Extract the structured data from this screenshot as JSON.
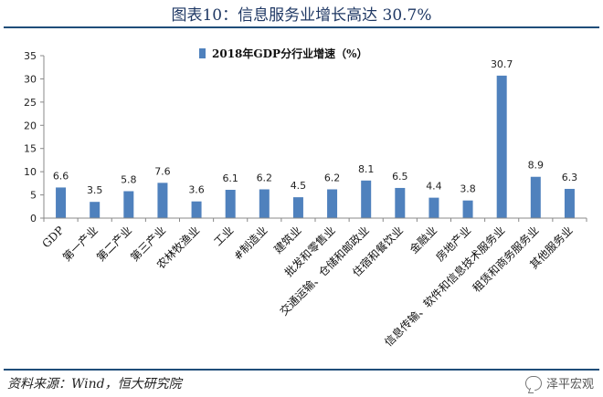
{
  "header": {
    "title": "图表10：信息服务业增长高达 30.7%"
  },
  "footer": {
    "source": "资料来源：Wind，恒大研究院",
    "watermark": "泽平宏观"
  },
  "colors": {
    "bar": "#4f81bd",
    "rule": "#1f4e79",
    "title": "#1f3864"
  },
  "chart_data": {
    "type": "bar",
    "title": "",
    "xlabel": "",
    "ylabel": "",
    "ylim": [
      0,
      35
    ],
    "yticks": [
      0,
      5,
      10,
      15,
      20,
      25,
      30,
      35
    ],
    "grid": false,
    "legend": "top-center",
    "categories": [
      "GDP",
      "第一产业",
      "第二产业",
      "第三产业",
      "农林牧渔业",
      "工业",
      "#制造业",
      "建筑业",
      "批发和零售业",
      "交通运输、仓储和邮政业",
      "住宿和餐饮业",
      "金融业",
      "房地产业",
      "信息传输、软件和信息技术服务业",
      "租赁和商务服务业",
      "其他服务业"
    ],
    "series": [
      {
        "name": "2018年GDP分行业增速（%）",
        "values": [
          6.6,
          3.5,
          5.8,
          7.6,
          3.6,
          6.1,
          6.2,
          4.5,
          6.2,
          8.1,
          6.5,
          4.4,
          3.8,
          30.7,
          8.9,
          6.3
        ]
      }
    ]
  }
}
